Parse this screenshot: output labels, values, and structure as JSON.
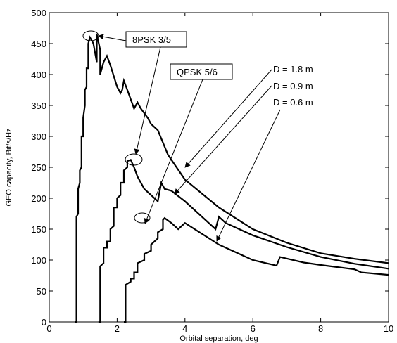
{
  "chart_data": {
    "type": "line",
    "title": "",
    "xlabel": "Orbital separation, deg",
    "ylabel": "GEO capacity, Bit/s/Hz",
    "xlim": [
      0,
      10
    ],
    "ylim": [
      0,
      500
    ],
    "xticks": [
      "0",
      "2",
      "4",
      "6",
      "8",
      "10"
    ],
    "yticks": [
      "0",
      "50",
      "100",
      "150",
      "200",
      "250",
      "300",
      "350",
      "400",
      "450",
      "500"
    ],
    "grid": false,
    "series": [
      {
        "name": "D = 1.8 m",
        "x": [
          0.75,
          0.8,
          0.8,
          0.85,
          0.85,
          0.9,
          0.9,
          0.95,
          0.95,
          1.0,
          1.0,
          1.05,
          1.05,
          1.1,
          1.1,
          1.15,
          1.15,
          1.2,
          1.3,
          1.4,
          1.4,
          1.5,
          1.5,
          1.6,
          1.7,
          1.8,
          2.0,
          2.1,
          2.15,
          2.2,
          2.3,
          2.4,
          2.5,
          2.6,
          2.7,
          2.9,
          3.0,
          3.2,
          3.5,
          4.0,
          5.0,
          6.0,
          7.0,
          8.0,
          9.0,
          10.0
        ],
        "y": [
          0,
          0,
          170,
          175,
          215,
          225,
          245,
          250,
          300,
          300,
          330,
          350,
          375,
          380,
          410,
          410,
          450,
          460,
          450,
          420,
          465,
          440,
          400,
          420,
          430,
          415,
          380,
          370,
          375,
          390,
          375,
          360,
          345,
          355,
          345,
          330,
          320,
          310,
          270,
          230,
          185,
          150,
          128,
          111,
          102,
          95
        ]
      },
      {
        "name": "D = 0.9 m",
        "x": [
          1.45,
          1.5,
          1.5,
          1.6,
          1.6,
          1.7,
          1.7,
          1.8,
          1.8,
          1.9,
          1.9,
          2.0,
          2.0,
          2.1,
          2.1,
          2.2,
          2.2,
          2.3,
          2.3,
          2.4,
          2.5,
          2.6,
          2.8,
          3.0,
          3.2,
          3.3,
          3.4,
          3.6,
          4.0,
          4.9,
          5.0,
          5.2,
          6.0,
          7.0,
          8.0,
          9.0,
          10.0
        ],
        "y": [
          0,
          0,
          90,
          95,
          120,
          120,
          130,
          130,
          150,
          155,
          185,
          185,
          200,
          205,
          225,
          225,
          245,
          250,
          260,
          262,
          250,
          235,
          215,
          205,
          195,
          225,
          215,
          212,
          195,
          150,
          170,
          160,
          140,
          121,
          105,
          94,
          86
        ]
      },
      {
        "name": "D = 0.6 m",
        "x": [
          2.2,
          2.25,
          2.25,
          2.4,
          2.4,
          2.5,
          2.5,
          2.6,
          2.6,
          2.8,
          2.8,
          3.0,
          3.0,
          3.2,
          3.2,
          3.35,
          3.35,
          3.4,
          3.6,
          3.8,
          3.9,
          4.0,
          5.0,
          6.0,
          6.7,
          6.8,
          7.5,
          8.0,
          9.0,
          9.2,
          10.0
        ],
        "y": [
          0,
          0,
          60,
          65,
          70,
          70,
          80,
          80,
          95,
          100,
          110,
          115,
          125,
          135,
          145,
          150,
          165,
          168,
          160,
          150,
          155,
          160,
          125,
          100,
          91,
          105,
          96,
          92,
          85,
          80,
          76
        ]
      }
    ],
    "annotations": [
      {
        "id": "ann-8psk",
        "text": "8PSK 3/5"
      },
      {
        "id": "ann-qpsk",
        "text": "QPSK 5/6"
      },
      {
        "id": "ann-d18",
        "text": "D = 1.8 m"
      },
      {
        "id": "ann-d09",
        "text": "D = 0.9 m"
      },
      {
        "id": "ann-d06",
        "text": "D = 0.6 m"
      }
    ]
  }
}
